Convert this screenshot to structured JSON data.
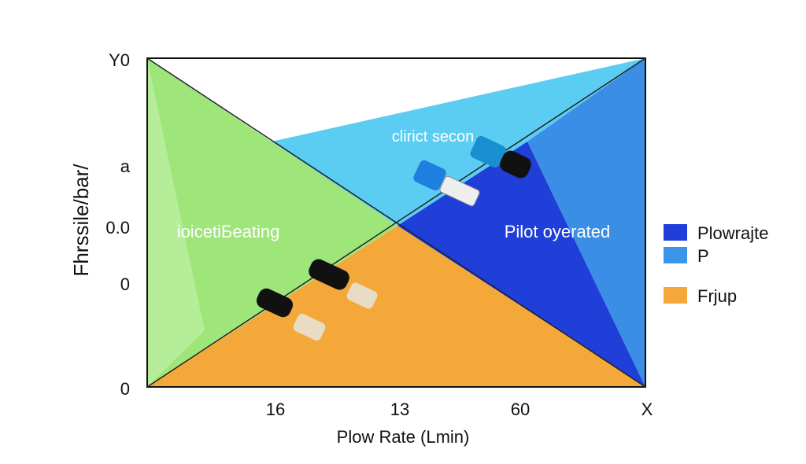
{
  "axes": {
    "y_title": "Fhrssile/bar/",
    "y_labels": [
      "Y0",
      "a",
      "0.0",
      "0",
      "0"
    ],
    "x_labels": [
      "16",
      "13",
      "60",
      "X"
    ],
    "x_title": "Plow Rate (Lmin)"
  },
  "regions": {
    "left": "ioicetiБeating",
    "top": "clirict secon",
    "right": "Pilot oyerated"
  },
  "legend": [
    {
      "label": "Plowrajte",
      "color": "#1f3fd8"
    },
    {
      "label": "P",
      "color": "#3a95ea"
    },
    {
      "label": "Frjup",
      "color": "#f5a83a"
    }
  ]
}
